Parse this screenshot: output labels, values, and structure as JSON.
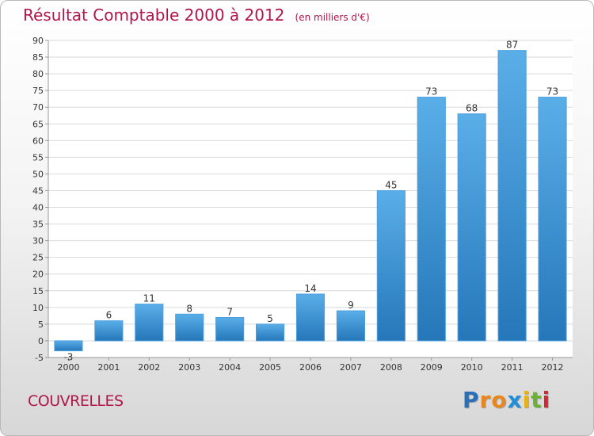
{
  "chart_data": {
    "type": "bar",
    "title": "Résultat Comptable 2000 à 2012",
    "subtitle": "(en milliers d'€)",
    "categories": [
      "2000",
      "2001",
      "2002",
      "2003",
      "2004",
      "2005",
      "2006",
      "2007",
      "2008",
      "2009",
      "2010",
      "2011",
      "2012"
    ],
    "values": [
      -3,
      6,
      11,
      8,
      7,
      5,
      14,
      9,
      45,
      73,
      68,
      87,
      73
    ],
    "value_labels": [
      "-3",
      "6",
      "11",
      "8",
      "7",
      "5",
      "14",
      "9",
      "45",
      "73",
      "68",
      "87",
      "73"
    ],
    "ylim": [
      -5,
      90
    ],
    "yticks": [
      -5,
      0,
      5,
      10,
      15,
      20,
      25,
      30,
      35,
      40,
      45,
      50,
      55,
      60,
      65,
      70,
      75,
      80,
      85,
      90
    ],
    "grid": true,
    "xlabel": "",
    "ylabel": ""
  },
  "footer": {
    "place": "COUVRELLES",
    "brand_letters": [
      "P",
      "r",
      "o",
      "x",
      "i",
      "t",
      "i"
    ],
    "brand_colors": [
      "#2a6fb8",
      "#e8871e",
      "#e8871e",
      "#1f8fd8",
      "#e6b21a",
      "#6bb234",
      "#d8262f"
    ]
  },
  "colors": {
    "title": "#b0164a",
    "bar_top": "#5aaee8",
    "bar_bottom": "#2577b9",
    "grid": "#d9d9d9"
  }
}
